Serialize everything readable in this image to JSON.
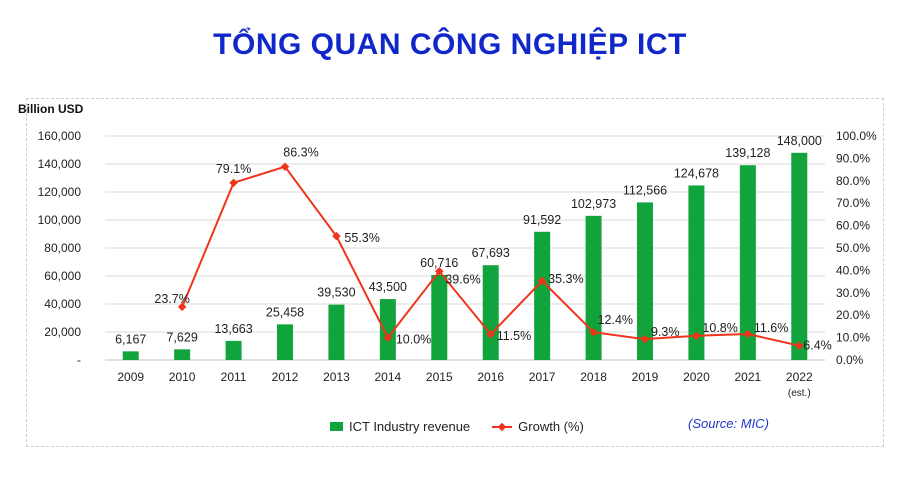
{
  "title": "TỔNG QUAN CÔNG NGHIỆP ICT",
  "source": "(Source: MIC)",
  "colors": {
    "bar": "#11a33c",
    "line": "#f0341c",
    "title": "#1027c9",
    "source": "#1f37c9"
  },
  "chart_data": {
    "type": "bar",
    "ylabel": "Billion USD",
    "ylim": [
      0,
      160000
    ],
    "y2lim": [
      0,
      100
    ],
    "y_ticks": [
      "-",
      "20,000",
      "40,000",
      "60,000",
      "80,000",
      "100,000",
      "120,000",
      "140,000",
      "160,000"
    ],
    "y2_ticks": [
      "0.0%",
      "10.0%",
      "20.0%",
      "30.0%",
      "40.0%",
      "50.0%",
      "60.0%",
      "70.0%",
      "80.0%",
      "90.0%",
      "100.0%"
    ],
    "categories": [
      "2009",
      "2010",
      "2011",
      "2012",
      "2013",
      "2014",
      "2015",
      "2016",
      "2017",
      "2018",
      "2019",
      "2020",
      "2021",
      "2022"
    ],
    "category_note": "(est.)",
    "series": [
      {
        "name": "ICT Industry revenue",
        "type": "bar",
        "values": [
          6167,
          7629,
          13663,
          25458,
          39530,
          43500,
          60716,
          67693,
          91592,
          102973,
          112566,
          124678,
          139128,
          148000
        ],
        "labels": [
          "6,167",
          "7,629",
          "13,663",
          "25,458",
          "39,530",
          "43,500",
          "60,716",
          "67,693",
          "91,592",
          "102,973",
          "112,566",
          "124,678",
          "139,128",
          "148,000"
        ]
      },
      {
        "name": "Growth (%)",
        "type": "line",
        "values": [
          null,
          23.7,
          79.1,
          86.3,
          55.3,
          10.0,
          39.6,
          11.5,
          35.3,
          12.4,
          9.3,
          10.8,
          11.6,
          6.4
        ],
        "labels": [
          "",
          "23.7%",
          "79.1%",
          "86.3%",
          "55.3%",
          "10.0%",
          "39.6%",
          "11.5%",
          "35.3%",
          "12.4%",
          "9.3%",
          "10.8%",
          "11.6%",
          "6.4%"
        ]
      }
    ],
    "legend_position": "bottom"
  }
}
